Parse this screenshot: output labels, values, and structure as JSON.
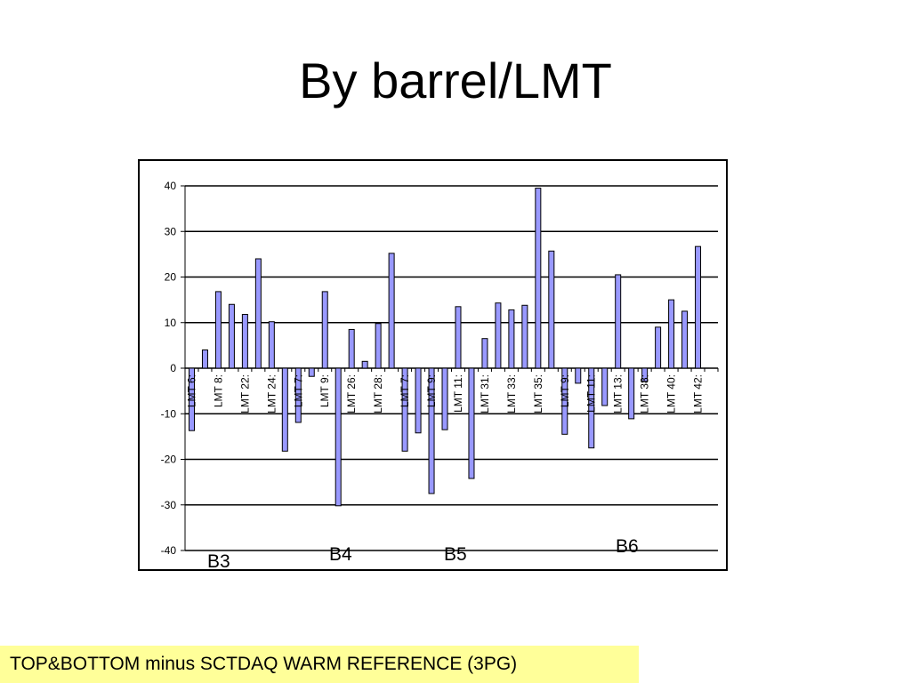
{
  "slide": {
    "title": "By barrel/LMT",
    "footer": "TOP&BOTTOM minus SCTDAQ WARM REFERENCE (3PG)"
  },
  "chart_data": {
    "type": "bar",
    "title": "",
    "xlabel": "",
    "ylabel": "",
    "ylim": [
      -40,
      40
    ],
    "yticks": [
      -40,
      -30,
      -20,
      -10,
      0,
      10,
      20,
      30,
      40
    ],
    "grid": true,
    "legend": "none",
    "bar_color": "#9999ff",
    "categories": [
      "LMT 6:",
      "",
      "LMT 8:",
      "",
      "LMT 22:",
      "",
      "LMT 24:",
      "",
      "LMT 7:",
      "",
      "LMT 9:",
      "",
      "LMT 26:",
      "",
      "LMT 28:",
      "",
      "LMT 7:",
      "",
      "LMT 9:",
      "",
      "LMT 11:",
      "",
      "LMT 31:",
      "",
      "LMT 33:",
      "",
      "LMT 35:",
      "",
      "LMT 9:",
      "",
      "LMT 11:",
      "",
      "LMT 13:",
      "",
      "LMT 38:",
      "",
      "LMT 40:",
      "",
      "LMT 42:",
      ""
    ],
    "values": [
      -13.7,
      4,
      16.8,
      14,
      11.8,
      24,
      10.2,
      -18.2,
      -11.9,
      -1.8,
      16.8,
      -30.2,
      8.5,
      1.5,
      9.8,
      25.2,
      -18.2,
      -14.2,
      -27.5,
      -13.5,
      13.5,
      -24.2,
      6.5,
      14.3,
      12.8,
      13.8,
      39.5,
      25.7,
      -14.5,
      -3.3,
      -17.5,
      -8.2,
      20.5,
      -11.1,
      -2.9,
      9,
      15,
      12.5,
      26.7,
      0
    ],
    "group_labels": [
      "B3",
      "B4",
      "B5",
      "B6"
    ]
  }
}
